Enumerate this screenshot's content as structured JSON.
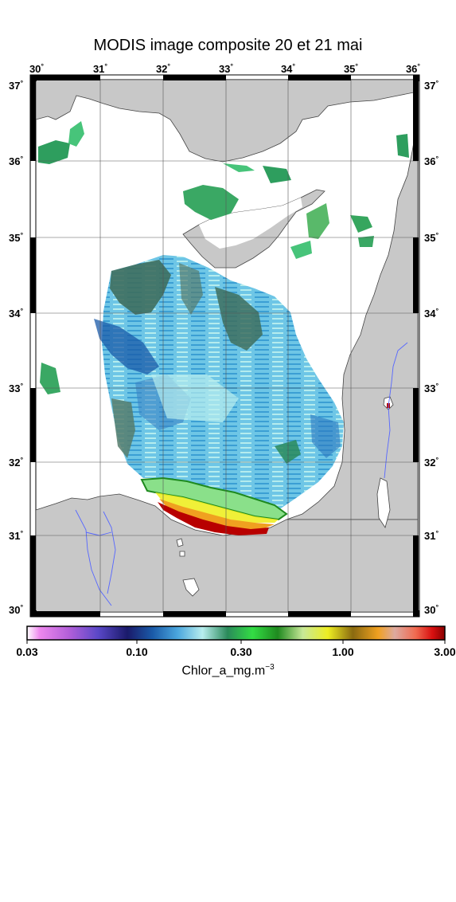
{
  "title": "MODIS image composite 20 et 21 mai",
  "axes": {
    "longitudes": [
      "30",
      "31",
      "32",
      "33",
      "34",
      "35",
      "36"
    ],
    "latitudes": [
      "37",
      "36",
      "35",
      "34",
      "33",
      "32",
      "31",
      "30"
    ],
    "degree_mark": "°"
  },
  "colorbar": {
    "tick_labels": [
      "0.03",
      "0.10",
      "0.30",
      "1.00",
      "3.00"
    ],
    "label_text": "Chlor_a_mg.m",
    "label_exponent": "−3",
    "scale": "log"
  },
  "colors": {
    "land": "#c8c8c8",
    "no_data": "#ffffff",
    "river": "#5566ff"
  }
}
